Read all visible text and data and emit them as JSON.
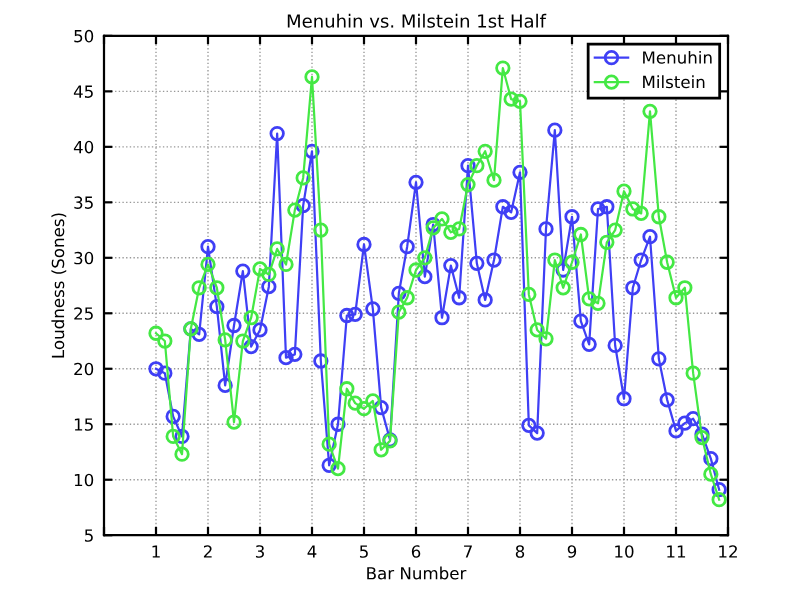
{
  "chart_data": {
    "type": "line",
    "title": "Menuhin vs. Milstein 1st Half",
    "xlabel": "Bar Number",
    "ylabel": "Loudness (Sones)",
    "x": [
      1,
      1.17,
      1.33,
      1.5,
      1.67,
      1.83,
      2,
      2.17,
      2.33,
      2.5,
      2.67,
      2.83,
      3,
      3.17,
      3.33,
      3.5,
      3.67,
      3.83,
      4,
      4.17,
      4.33,
      4.5,
      4.67,
      4.83,
      5,
      5.17,
      5.33,
      5.5,
      5.67,
      5.83,
      6,
      6.17,
      6.33,
      6.5,
      6.67,
      6.83,
      7,
      7.17,
      7.33,
      7.5,
      7.67,
      7.83,
      8,
      8.17,
      8.33,
      8.5,
      8.67,
      8.83,
      9,
      9.17,
      9.33,
      9.5,
      9.67,
      9.83,
      10,
      10.17,
      10.33,
      10.5,
      10.67,
      10.83,
      11,
      11.17,
      11.33,
      11.5,
      11.67,
      11.83
    ],
    "series": [
      {
        "name": "Menuhin",
        "color": "#3f3ff5",
        "values": [
          20.0,
          19.6,
          15.7,
          13.9,
          23.6,
          23.1,
          31.0,
          25.6,
          18.5,
          23.9,
          28.8,
          22.0,
          23.5,
          27.4,
          41.2,
          21.0,
          21.3,
          34.7,
          39.6,
          20.7,
          11.3,
          15.0,
          24.8,
          24.9,
          31.2,
          25.4,
          16.5,
          13.6,
          26.8,
          31.0,
          36.8,
          28.3,
          33.0,
          24.6,
          29.3,
          26.4,
          38.3,
          29.5,
          26.2,
          29.8,
          34.6,
          34.1,
          37.7,
          14.9,
          14.2,
          32.6,
          41.5,
          28.9,
          33.7,
          24.3,
          22.2,
          34.4,
          34.6,
          22.1,
          17.3,
          27.3,
          29.8,
          31.9,
          20.9,
          17.2,
          14.4,
          15.1,
          15.5,
          14.1,
          11.9,
          9.1
        ]
      },
      {
        "name": "Milstein",
        "color": "#44e844",
        "values": [
          23.2,
          22.5,
          13.9,
          12.3,
          23.6,
          27.3,
          29.4,
          27.3,
          22.6,
          15.2,
          22.5,
          24.6,
          29.0,
          28.5,
          30.8,
          29.4,
          34.3,
          37.2,
          46.3,
          32.5,
          13.2,
          11.0,
          18.2,
          16.9,
          16.4,
          17.1,
          12.7,
          13.5,
          25.1,
          26.4,
          28.9,
          30.0,
          32.7,
          33.5,
          32.3,
          32.6,
          36.6,
          38.3,
          39.6,
          37.0,
          47.1,
          44.3,
          44.1,
          26.7,
          23.5,
          22.7,
          29.8,
          27.3,
          29.6,
          32.1,
          26.3,
          25.9,
          31.4,
          32.5,
          36.0,
          34.4,
          34.0,
          43.2,
          33.7,
          29.6,
          26.4,
          27.3,
          19.6,
          13.8,
          10.5,
          8.2
        ]
      }
    ],
    "xlim": [
      0,
      12
    ],
    "xticks": [
      {
        "value": 0,
        "label": null
      },
      1,
      2,
      3,
      4,
      5,
      6,
      7,
      8,
      9,
      10,
      11,
      12
    ],
    "ylim": [
      5,
      50
    ],
    "yticks": [
      5,
      10,
      15,
      20,
      25,
      30,
      35,
      40,
      45,
      50
    ],
    "grid": true,
    "legend": "top right",
    "marker": "circle",
    "line_style": "solid"
  }
}
